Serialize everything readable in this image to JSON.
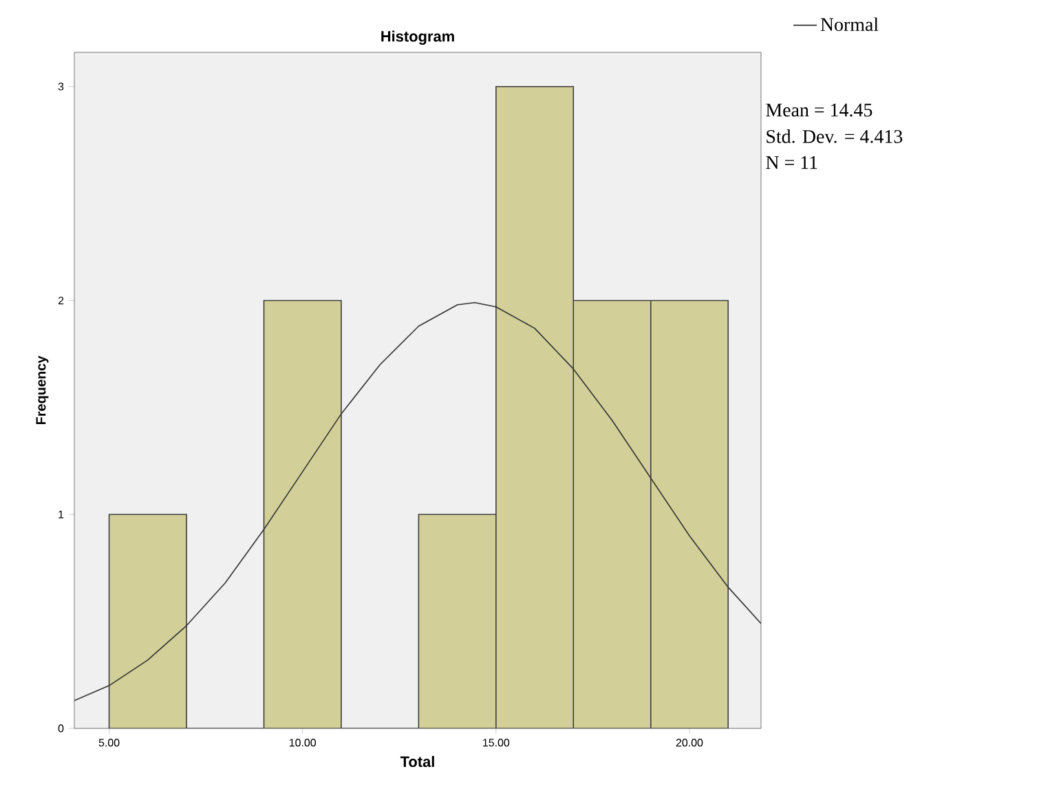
{
  "chart_data": {
    "type": "histogram",
    "title": "Histogram",
    "xlabel": "Total",
    "ylabel": "Frequency",
    "bins": [
      5,
      7,
      9,
      11,
      13,
      15,
      17,
      19,
      21
    ],
    "values": [
      1,
      0,
      2,
      0,
      1,
      3,
      2,
      2
    ],
    "color": "#d3cf98",
    "series": [
      {
        "name": "Normal",
        "type": "line",
        "color": "#333333",
        "x": [
          4.1,
          5,
          6,
          7,
          8,
          9,
          10,
          11,
          12,
          13,
          14,
          14.45,
          15,
          16,
          17,
          18,
          19,
          20,
          21,
          21.85
        ],
        "values": [
          0.13,
          0.2,
          0.32,
          0.48,
          0.68,
          0.93,
          1.2,
          1.47,
          1.7,
          1.88,
          1.98,
          1.99,
          1.97,
          1.87,
          1.68,
          1.44,
          1.17,
          0.9,
          0.66,
          0.49
        ]
      }
    ],
    "xlim": [
      4.1,
      21.85
    ],
    "ylim": [
      0,
      3.16
    ],
    "xticks": [
      {
        "value": 5,
        "label": "5.00"
      },
      {
        "value": 10,
        "label": "10.00"
      },
      {
        "value": 15,
        "label": "15.00"
      },
      {
        "value": 20,
        "label": "20.00"
      }
    ],
    "yticks": [
      0,
      1,
      2,
      3
    ],
    "legend": "top right",
    "annotations": [
      "Mean = 14.45",
      "Std. Dev. = 4.413",
      "N = 11"
    ]
  }
}
